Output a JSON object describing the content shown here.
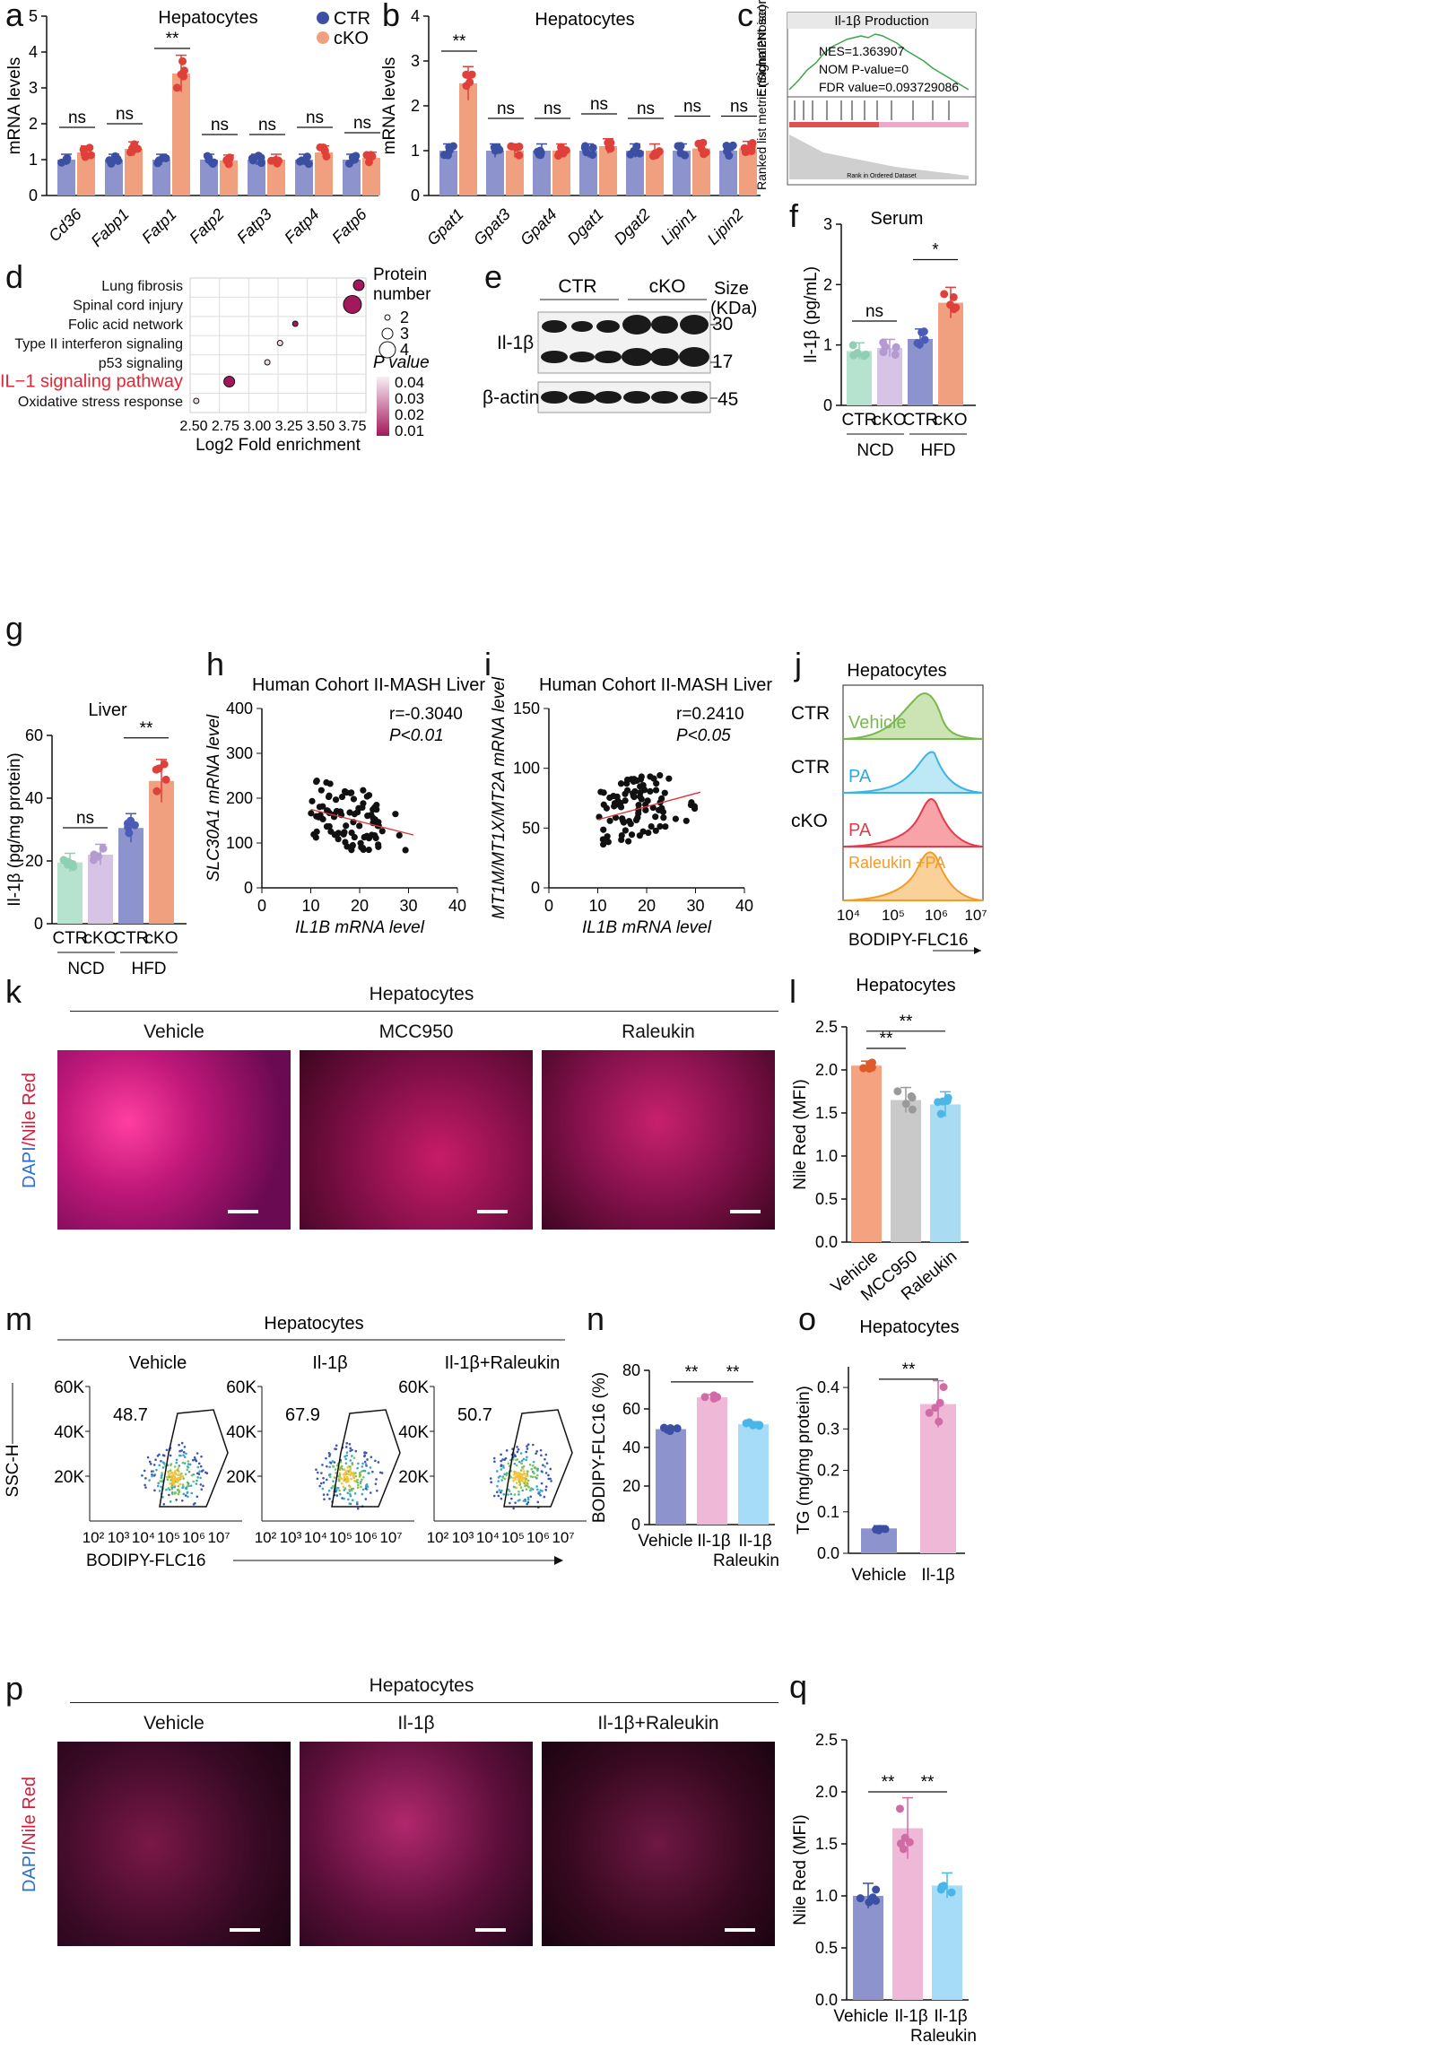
{
  "colors": {
    "ctr": "#8d93cc",
    "ctr_dot": "#3b4fa3",
    "cko": "#f0a07e",
    "cko_dot": "#e0403a",
    "ncd_ctr": "#b5e3cf",
    "ncd_cko": "#d7c3e6",
    "hfd_ctr": "#8d93cc",
    "hfd_cko": "#f0a07e",
    "vehicle_l": "#f4a27f",
    "mcc950": "#c9c9c9",
    "raleukin": "#a9dcf3",
    "pink": "#efb8d6",
    "lightblue": "#a6dcf8"
  },
  "panels": {
    "a": {
      "label": "a",
      "title": "Hepatocytes",
      "ylabel": "mRNA levels",
      "legend": [
        "CTR",
        "cKO"
      ],
      "yticks": [
        "0",
        "1",
        "2",
        "3",
        "4",
        "5"
      ],
      "genes": [
        "Cd36",
        "Fabp1",
        "Fatp1",
        "Fatp2",
        "Fatp3",
        "Fatp4",
        "Fatp6"
      ],
      "sig": [
        "ns",
        "ns",
        "**",
        "ns",
        "ns",
        "ns",
        "ns"
      ]
    },
    "b": {
      "label": "b",
      "title": "Hepatocytes",
      "ylabel": "mRNA levels",
      "yticks": [
        "0",
        "1",
        "2",
        "3",
        "4"
      ],
      "genes": [
        "Gpat1",
        "Gpat3",
        "Gpat4",
        "Dgat1",
        "Dgat2",
        "Lipin1",
        "Lipin2"
      ],
      "sig": [
        "**",
        "ns",
        "ns",
        "ns",
        "ns",
        "ns",
        "ns"
      ]
    },
    "c": {
      "label": "c",
      "title": "Il-1β Production",
      "ylabel_top": "Enrichment score (ES)",
      "ylabel_bottom": "Ranked list metric (Signal2Noise)",
      "stats": [
        "NES=1.363907",
        "NOM P-value=0",
        "FDR value=0.093729086"
      ],
      "xlabel": "Rank in Ordered Dataset"
    },
    "d": {
      "label": "d",
      "terms": [
        "Lung fibrosis",
        "Spinal cord injury",
        "Folic acid network",
        "Type II interferon signaling",
        "p53 signaling",
        "IL−1 signaling pathway",
        "Oxidative stress response"
      ],
      "highlight": "IL−1 signaling pathway",
      "xticks": [
        "2.50",
        "2.75",
        "3.00",
        "3.25",
        "3.50",
        "3.75"
      ],
      "xlabel": "Log2 Fold enrichment",
      "size_legend_title": [
        "Protein",
        "number"
      ],
      "size_legend": [
        "2",
        "3",
        "4"
      ],
      "pval_title": "P value",
      "pval_ticks": [
        "0.04",
        "0.03",
        "0.02",
        "0.01"
      ]
    },
    "e": {
      "label": "e",
      "groups": [
        "CTR",
        "cKO"
      ],
      "size_title": [
        "Size",
        "(KDa)"
      ],
      "rows": [
        "Il-1β",
        "β-actin"
      ],
      "markers": [
        "30",
        "17",
        "45"
      ]
    },
    "f": {
      "label": "f",
      "title": "Serum",
      "ylabel": "Il-1β (pg/mL)",
      "yticks": [
        "0",
        "1",
        "2",
        "3"
      ],
      "xlabels": [
        "CTR",
        "cKO",
        "CTR",
        "cKO"
      ],
      "groups": [
        "NCD",
        "HFD"
      ],
      "sig": [
        "ns",
        "*"
      ]
    },
    "g": {
      "label": "g",
      "title": "Liver",
      "ylabel": "Il-1β (pg/mg protein)",
      "yticks": [
        "0",
        "20",
        "40",
        "60"
      ],
      "xlabels": [
        "CTR",
        "cKO",
        "CTR",
        "cKO"
      ],
      "groups": [
        "NCD",
        "HFD"
      ],
      "sig": [
        "ns",
        "**"
      ]
    },
    "h": {
      "label": "h",
      "title": "Human Cohort II-MASH Liver",
      "ylabel": "SLC30A1 mRNA level",
      "xlabel": "IL1B mRNA level",
      "r": "r=-0.3040",
      "p": "P<0.01",
      "yticks": [
        "0",
        "100",
        "200",
        "300",
        "400"
      ],
      "xticks": [
        "0",
        "10",
        "20",
        "30",
        "40"
      ]
    },
    "i": {
      "label": "i",
      "title": "Human Cohort II-MASH Liver",
      "ylabel": "MT1M/MT1X/MT2A mRNA level",
      "xlabel": "IL1B mRNA level",
      "r": "r=0.2410",
      "p": "P<0.05",
      "yticks": [
        "0",
        "50",
        "100",
        "150"
      ],
      "xticks": [
        "0",
        "10",
        "20",
        "30",
        "40"
      ]
    },
    "j": {
      "label": "j",
      "title": "Hepatocytes",
      "rows": [
        "CTR",
        "CTR",
        "cKO",
        ""
      ],
      "traces": [
        "Vehicle",
        "PA",
        "PA",
        "Raleukin +PA"
      ],
      "xlabel": "BODIPY-FLC16",
      "xticks": [
        "10⁴",
        "10⁵",
        "10⁶",
        "10⁷"
      ]
    },
    "k": {
      "label": "k",
      "title": "Hepatocytes",
      "stain": [
        "DAPI",
        "/Nile Red"
      ],
      "conditions": [
        "Vehicle",
        "MCC950",
        "Raleukin"
      ]
    },
    "l": {
      "label": "l",
      "title": "Hepatocytes",
      "ylabel": "Nile Red (MFI)",
      "yticks": [
        "0.0",
        "0.5",
        "1.0",
        "1.5",
        "2.0",
        "2.5"
      ],
      "xlabels": [
        "Vehicle",
        "MCC950",
        "Raleukin"
      ],
      "sig": [
        "**",
        "**"
      ]
    },
    "m": {
      "label": "m",
      "title": "Hepatocytes",
      "conditions": [
        "Vehicle",
        "Il-1β",
        "Il-1β+Raleukin"
      ],
      "gate_values": [
        "48.7",
        "67.9",
        "50.7"
      ],
      "ylabel": "SSC-H",
      "xlabel": "BODIPY-FLC16",
      "yticks": [
        "20K",
        "40K",
        "60K"
      ],
      "xticks": [
        "10²",
        "10³",
        "10⁴",
        "10⁵",
        "10⁶",
        "10⁷"
      ]
    },
    "n": {
      "label": "n",
      "ylabel": "BODIPY-FLC16 (%)",
      "yticks": [
        "0",
        "20",
        "40",
        "60",
        "80"
      ],
      "xlabels": [
        "Vehicle",
        "Il-1β",
        "Il-1β",
        "Raleukin"
      ],
      "sig": [
        "**",
        "**"
      ]
    },
    "o": {
      "label": "o",
      "title": "Hepatocytes",
      "ylabel": "TG (mg/mg protein)",
      "yticks": [
        "0.0",
        "0.1",
        "0.2",
        "0.3",
        "0.4"
      ],
      "xlabels": [
        "Vehicle",
        "Il-1β"
      ],
      "sig": [
        "**"
      ]
    },
    "p": {
      "label": "p",
      "title": "Hepatocytes",
      "stain": [
        "DAPI",
        "/Nile Red"
      ],
      "conditions": [
        "Vehicle",
        "Il-1β",
        "Il-1β+Raleukin"
      ]
    },
    "q": {
      "label": "q",
      "ylabel": "Nile Red (MFI)",
      "yticks": [
        "0.0",
        "0.5",
        "1.0",
        "1.5",
        "2.0",
        "2.5"
      ],
      "xlabels": [
        "Vehicle",
        "Il-1β",
        "Il-1β",
        "Raleukin"
      ],
      "sig": [
        "**",
        "**"
      ]
    }
  },
  "chart_data": [
    {
      "panel": "a",
      "type": "bar",
      "categories": [
        "Cd36",
        "Fabp1",
        "Fatp1",
        "Fatp2",
        "Fatp3",
        "Fatp4",
        "Fatp6"
      ],
      "series": [
        {
          "name": "CTR",
          "values": [
            1.0,
            1.0,
            1.0,
            1.0,
            1.0,
            1.0,
            1.0
          ]
        },
        {
          "name": "cKO",
          "values": [
            1.2,
            1.3,
            3.4,
            0.98,
            1.0,
            1.2,
            1.05
          ]
        }
      ],
      "ylim": [
        0,
        5
      ]
    },
    {
      "panel": "b",
      "type": "bar",
      "categories": [
        "Gpat1",
        "Gpat3",
        "Gpat4",
        "Dgat1",
        "Dgat2",
        "Lipin1",
        "Lipin2"
      ],
      "series": [
        {
          "name": "CTR",
          "values": [
            1.0,
            1.0,
            1.0,
            1.0,
            1.0,
            1.0,
            1.0
          ]
        },
        {
          "name": "cKO",
          "values": [
            2.5,
            1.0,
            1.0,
            1.1,
            1.0,
            1.05,
            1.05
          ]
        }
      ],
      "ylim": [
        0,
        4
      ]
    },
    {
      "panel": "d",
      "type": "scatter",
      "terms": [
        "Lung fibrosis",
        "Spinal cord injury",
        "Folic acid network",
        "Type II interferon signaling",
        "p53 signaling",
        "IL−1 signaling pathway",
        "Oxidative stress response"
      ],
      "x": [
        3.8,
        3.75,
        3.3,
        3.18,
        3.08,
        2.78,
        2.52
      ],
      "size": [
        3,
        4,
        2,
        2,
        2,
        3,
        2
      ],
      "pvalue": [
        0.01,
        0.01,
        0.015,
        0.035,
        0.03,
        0.01,
        0.045
      ],
      "xlim": [
        2.5,
        3.8
      ]
    },
    {
      "panel": "f",
      "type": "bar",
      "categories": [
        "CTR",
        "cKO",
        "CTR",
        "cKO"
      ],
      "values": [
        0.9,
        0.95,
        1.1,
        1.7
      ],
      "ylim": [
        0,
        3
      ]
    },
    {
      "panel": "g",
      "type": "bar",
      "categories": [
        "CTR",
        "cKO",
        "CTR",
        "cKO"
      ],
      "values": [
        19.5,
        22,
        30.5,
        45.5
      ],
      "ylim": [
        0,
        60
      ]
    },
    {
      "panel": "h",
      "type": "scatter",
      "xlim": [
        0,
        40
      ],
      "ylim": [
        0,
        400
      ],
      "fit": [
        [
          10,
          175
        ],
        [
          31,
          118
        ]
      ]
    },
    {
      "panel": "i",
      "type": "scatter",
      "xlim": [
        0,
        40
      ],
      "ylim": [
        0,
        150
      ],
      "fit": [
        [
          10,
          57
        ],
        [
          31,
          80
        ]
      ]
    },
    {
      "panel": "l",
      "type": "bar",
      "categories": [
        "Vehicle",
        "MCC950",
        "Raleukin"
      ],
      "values": [
        2.05,
        1.65,
        1.6
      ],
      "ylim": [
        0,
        2.5
      ]
    },
    {
      "panel": "n",
      "type": "bar",
      "categories": [
        "Vehicle",
        "Il-1β",
        "Il-1β Raleukin"
      ],
      "values": [
        49.5,
        66,
        52
      ],
      "ylim": [
        0,
        80
      ]
    },
    {
      "panel": "o",
      "type": "bar",
      "categories": [
        "Vehicle",
        "Il-1β"
      ],
      "values": [
        0.06,
        0.36
      ],
      "ylim": [
        0,
        0.45
      ]
    },
    {
      "panel": "q",
      "type": "bar",
      "categories": [
        "Vehicle",
        "Il-1β",
        "Il-1β Raleukin"
      ],
      "values": [
        1.0,
        1.65,
        1.1
      ],
      "ylim": [
        0,
        2.5
      ]
    }
  ]
}
